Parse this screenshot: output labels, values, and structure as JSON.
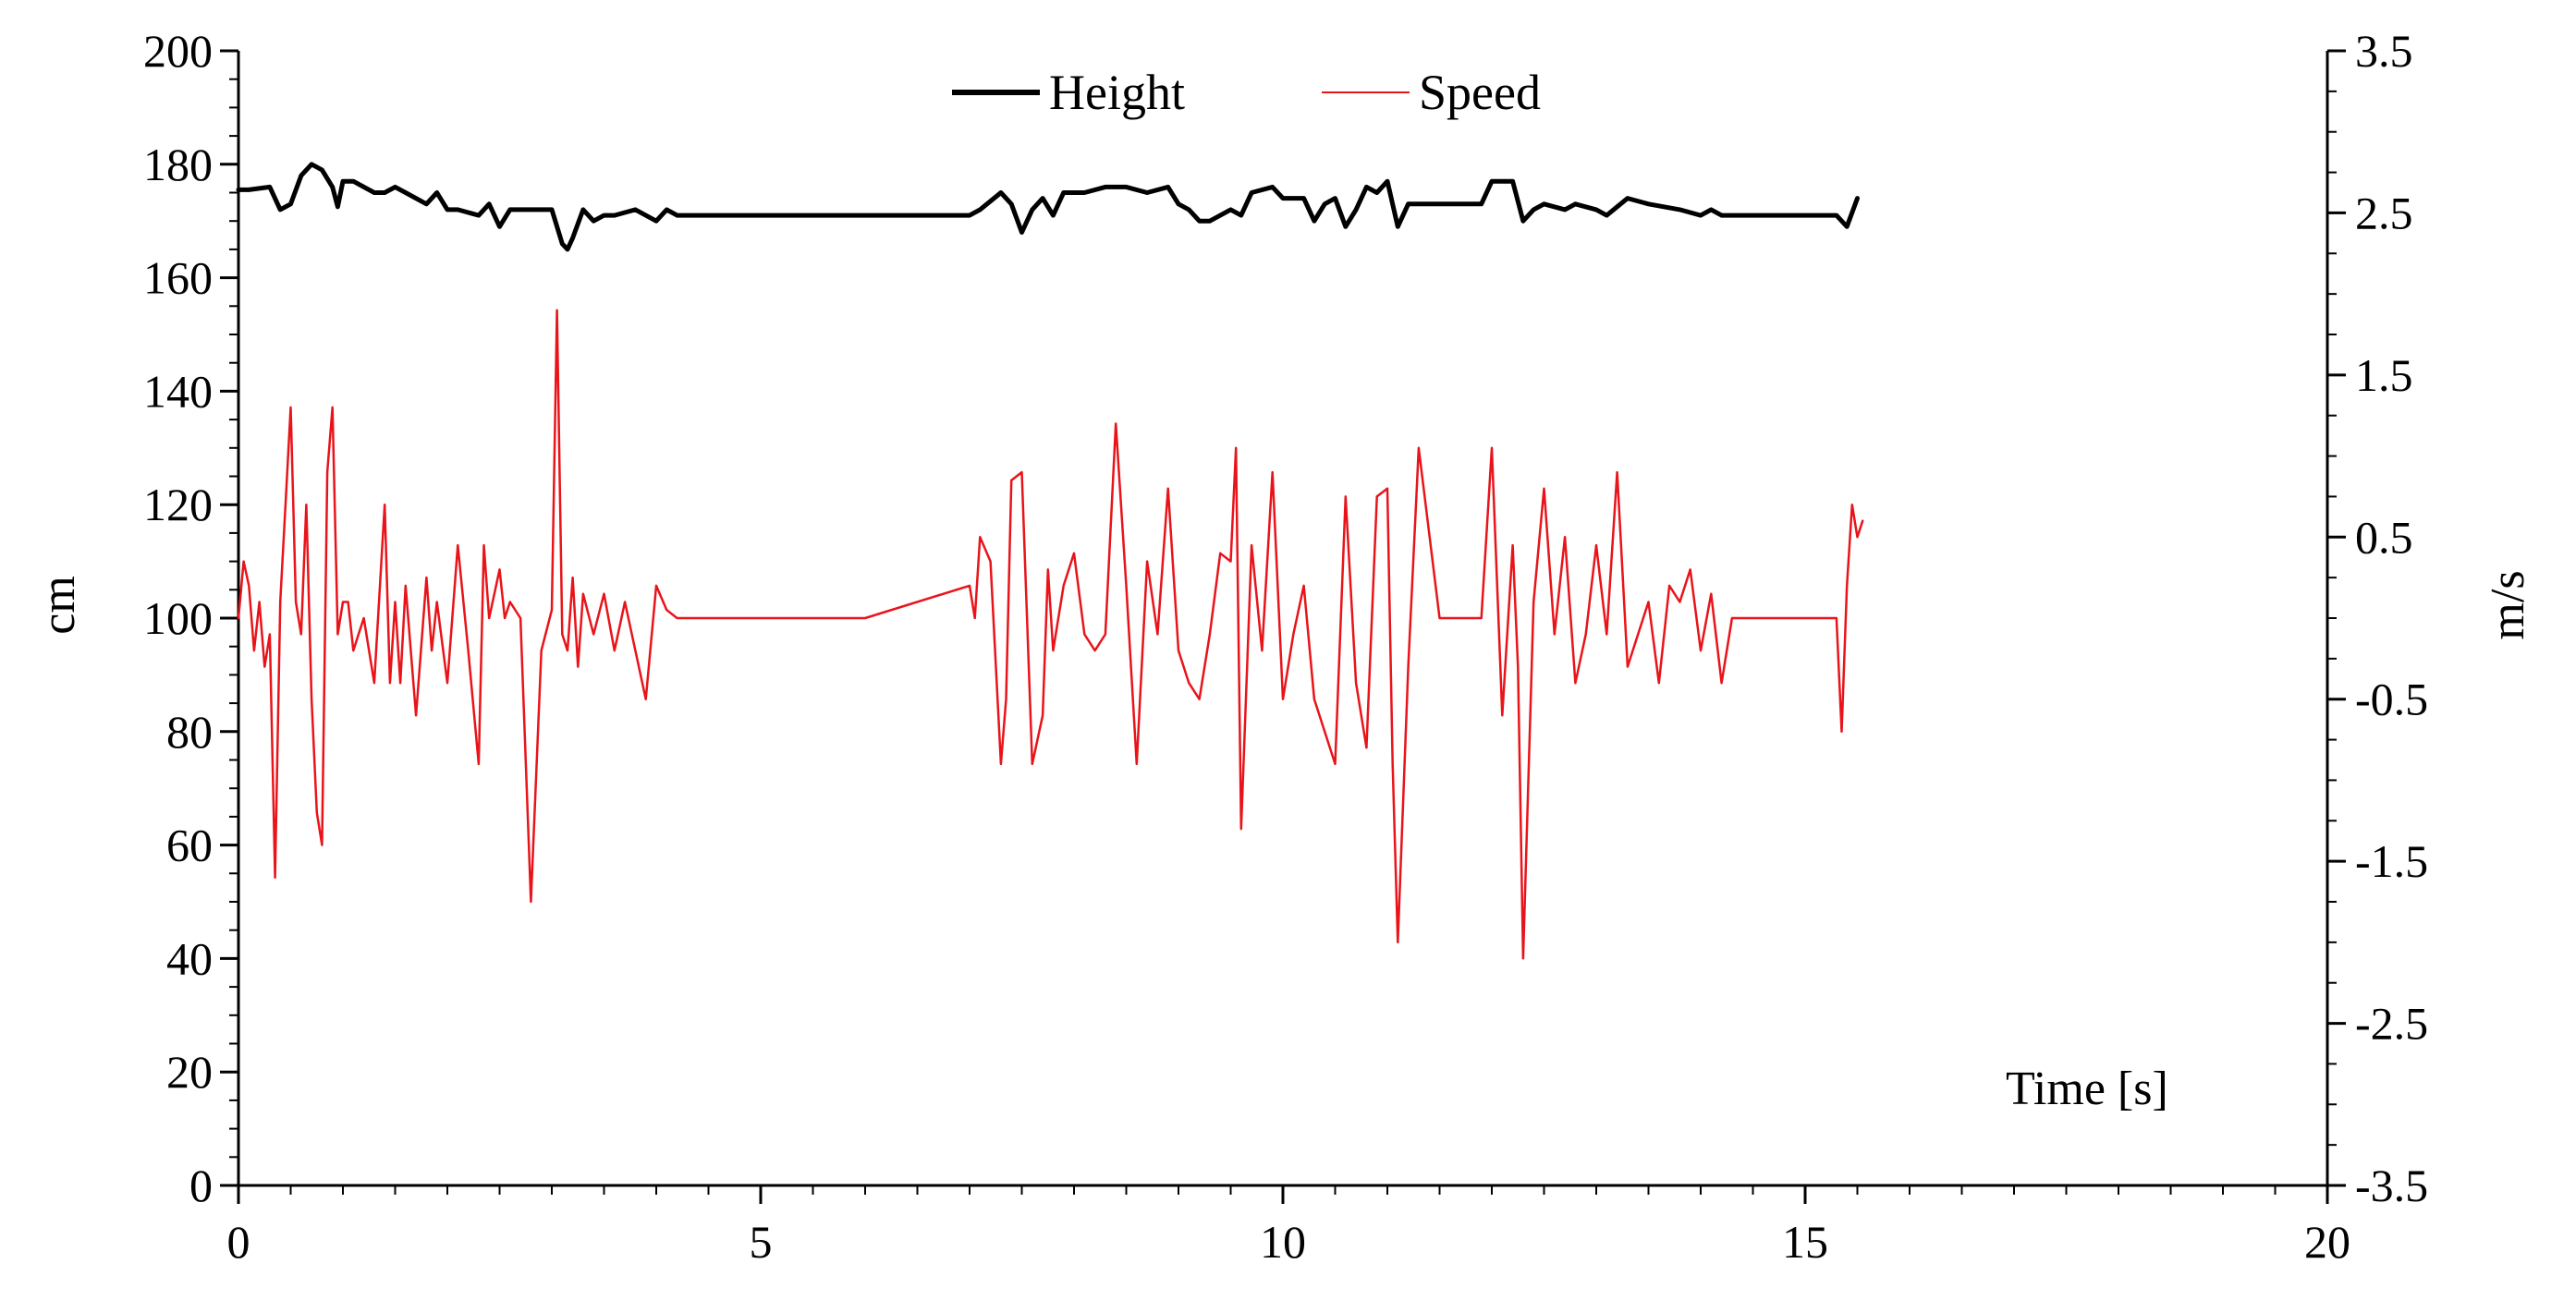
{
  "chart_data": {
    "type": "line",
    "title": "",
    "xlabel": "Time [s]",
    "ylabel_left": "cm",
    "ylabel_right": "m/s",
    "xlim": [
      0,
      20
    ],
    "ylim_left": [
      0,
      200
    ],
    "ylim_right": [
      -3.5,
      3.5
    ],
    "x_ticks": [
      "0",
      "5",
      "10",
      "15",
      "20"
    ],
    "y_left_ticks": [
      "0",
      "20",
      "40",
      "60",
      "80",
      "100",
      "120",
      "140",
      "160",
      "180",
      "200"
    ],
    "y_right_ticks": [
      "-3.5",
      "-2.5",
      "-1.5",
      "-0.5",
      "0.5",
      "1.5",
      "2.5",
      "3.5"
    ],
    "grid": false,
    "legend_position": "top-center",
    "series": [
      {
        "name": "Height",
        "axis": "left",
        "color": "#000000",
        "x": [
          0,
          0.1,
          0.3,
          0.4,
          0.5,
          0.6,
          0.7,
          0.8,
          0.9,
          0.95,
          1.0,
          1.1,
          1.3,
          1.4,
          1.5,
          1.6,
          1.8,
          1.9,
          2.0,
          2.1,
          2.3,
          2.4,
          2.5,
          2.6,
          2.8,
          2.9,
          3.0,
          3.1,
          3.15,
          3.2,
          3.3,
          3.4,
          3.5,
          3.6,
          3.8,
          4.0,
          4.1,
          4.2,
          4.3,
          5.0,
          6.0,
          7.0,
          7.1,
          7.3,
          7.4,
          7.5,
          7.6,
          7.7,
          7.8,
          7.9,
          8.1,
          8.3,
          8.5,
          8.7,
          8.9,
          9.0,
          9.1,
          9.2,
          9.3,
          9.5,
          9.6,
          9.7,
          9.9,
          10.0,
          10.2,
          10.3,
          10.4,
          10.5,
          10.6,
          10.7,
          10.8,
          10.9,
          11.0,
          11.1,
          11.2,
          11.3,
          11.6,
          11.9,
          12.0,
          12.2,
          12.3,
          12.4,
          12.5,
          12.7,
          12.8,
          13.0,
          13.1,
          13.3,
          13.5,
          13.8,
          14.0,
          14.1,
          14.2,
          14.5,
          15.0,
          15.3,
          15.4,
          15.5
        ],
        "y": [
          175.5,
          175.5,
          176,
          172,
          173,
          178,
          180,
          179,
          176,
          172.5,
          177,
          177,
          175,
          175,
          176,
          175,
          173,
          175,
          172,
          172,
          171,
          173,
          169,
          172,
          172,
          172,
          172,
          166,
          165,
          167,
          172,
          170,
          171,
          171,
          172,
          170,
          172,
          171,
          171,
          171,
          171,
          171,
          172,
          175,
          173,
          168,
          172,
          174,
          171,
          175,
          175,
          176,
          176,
          175,
          176,
          173,
          172,
          170,
          170,
          172,
          171,
          175,
          176,
          174,
          174,
          170,
          173,
          174,
          169,
          172,
          176,
          175,
          177,
          169,
          173,
          173,
          173,
          173,
          177,
          177,
          170,
          172,
          173,
          172,
          173,
          172,
          171,
          174,
          173,
          172,
          171,
          172,
          171,
          171,
          171,
          171,
          169,
          174
        ]
      },
      {
        "name": "Speed",
        "axis": "right",
        "color": "#e8141a",
        "x": [
          0,
          0.05,
          0.1,
          0.15,
          0.2,
          0.25,
          0.3,
          0.35,
          0.4,
          0.45,
          0.5,
          0.55,
          0.6,
          0.65,
          0.7,
          0.75,
          0.8,
          0.85,
          0.9,
          0.95,
          1.0,
          1.05,
          1.1,
          1.15,
          1.2,
          1.3,
          1.4,
          1.45,
          1.5,
          1.55,
          1.6,
          1.7,
          1.8,
          1.85,
          1.9,
          2.0,
          2.1,
          2.2,
          2.3,
          2.35,
          2.4,
          2.5,
          2.55,
          2.6,
          2.7,
          2.8,
          2.9,
          3.0,
          3.05,
          3.1,
          3.15,
          3.2,
          3.25,
          3.3,
          3.4,
          3.5,
          3.6,
          3.7,
          3.8,
          3.9,
          4.0,
          4.1,
          4.2,
          4.3,
          4.5,
          5.0,
          6.0,
          7.0,
          7.05,
          7.1,
          7.2,
          7.3,
          7.35,
          7.4,
          7.5,
          7.6,
          7.7,
          7.75,
          7.8,
          7.9,
          8.0,
          8.1,
          8.2,
          8.3,
          8.4,
          8.5,
          8.6,
          8.7,
          8.8,
          8.9,
          9.0,
          9.1,
          9.2,
          9.3,
          9.4,
          9.5,
          9.55,
          9.6,
          9.7,
          9.8,
          9.9,
          10.0,
          10.1,
          10.2,
          10.3,
          10.4,
          10.5,
          10.6,
          10.7,
          10.8,
          10.9,
          11.0,
          11.05,
          11.1,
          11.2,
          11.3,
          11.5,
          11.8,
          11.9,
          12.0,
          12.1,
          12.2,
          12.25,
          12.3,
          12.4,
          12.5,
          12.6,
          12.7,
          12.8,
          12.9,
          13.0,
          13.1,
          13.2,
          13.3,
          13.4,
          13.5,
          13.6,
          13.7,
          13.8,
          13.9,
          14.0,
          14.1,
          14.2,
          14.3,
          15.0,
          15.2,
          15.3,
          15.35,
          15.4,
          15.45,
          15.5,
          15.55
        ],
        "y": [
          0,
          0.35,
          0.2,
          -0.2,
          0.1,
          -0.3,
          -0.1,
          -1.6,
          0.1,
          0.7,
          1.3,
          0.1,
          -0.1,
          0.7,
          -0.5,
          -1.2,
          -1.4,
          0.9,
          1.3,
          -0.1,
          0.1,
          0.1,
          -0.2,
          -0.1,
          0,
          -0.4,
          0.7,
          -0.4,
          0.1,
          -0.4,
          0.2,
          -0.6,
          0.25,
          -0.2,
          0.1,
          -0.4,
          0.45,
          -0.2,
          -0.9,
          0.45,
          0,
          0.3,
          0,
          0.1,
          0,
          -1.75,
          -0.2,
          0.05,
          1.9,
          -0.1,
          -0.2,
          0.25,
          -0.3,
          0.15,
          -0.1,
          0.15,
          -0.2,
          0.1,
          -0.2,
          -0.5,
          0.2,
          0.05,
          0,
          0,
          0,
          0,
          0,
          0.2,
          0,
          0.5,
          0.35,
          -0.9,
          -0.5,
          0.85,
          0.9,
          -0.9,
          -0.6,
          0.3,
          -0.2,
          0.2,
          0.4,
          -0.1,
          -0.2,
          -0.1,
          1.2,
          0.2,
          -0.9,
          0.35,
          -0.1,
          0.8,
          -0.2,
          -0.4,
          -0.5,
          -0.1,
          0.4,
          0.35,
          1.05,
          -1.3,
          0.45,
          -0.2,
          0.9,
          -0.5,
          -0.1,
          0.2,
          -0.5,
          -0.7,
          -0.9,
          0.75,
          -0.4,
          -0.8,
          0.75,
          0.8,
          -0.9,
          -2.0,
          -0.3,
          1.05,
          0,
          0,
          0,
          1.05,
          -0.6,
          0.45,
          -0.3,
          -2.1,
          0.1,
          0.8,
          -0.1,
          0.5,
          -0.4,
          -0.1,
          0.45,
          -0.1,
          0.9,
          -0.3,
          -0.1,
          0.1,
          -0.4,
          0.2,
          0.1,
          0.3,
          -0.2,
          0.15,
          -0.4,
          0,
          0,
          0,
          0,
          -0.7,
          0.2,
          0.7,
          0.5,
          0.6
        ]
      }
    ]
  }
}
